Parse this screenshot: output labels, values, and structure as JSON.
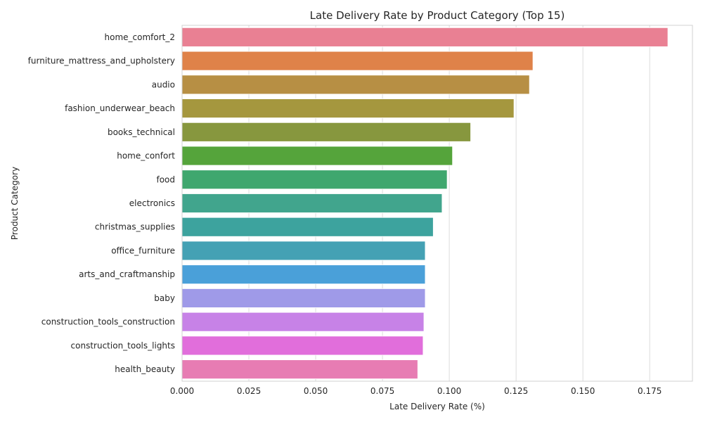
{
  "chart_data": {
    "type": "bar",
    "orientation": "horizontal",
    "title": "Late Delivery Rate by Product Category (Top 15)",
    "xlabel": "Late Delivery Rate (%)",
    "ylabel": "Product Category",
    "xlim": [
      0,
      0.191
    ],
    "xticks": [
      "0.000",
      "0.025",
      "0.050",
      "0.075",
      "0.100",
      "0.125",
      "0.150",
      "0.175"
    ],
    "grid": "vertical",
    "categories": [
      "home_comfort_2",
      "furniture_mattress_and_upholstery",
      "audio",
      "fashion_underwear_beach",
      "books_technical",
      "home_confort",
      "food",
      "electronics",
      "christmas_supplies",
      "office_furniture",
      "arts_and_craftmanship",
      "baby",
      "construction_tools_construction",
      "construction_tools_lights",
      "health_beauty"
    ],
    "values": [
      0.1818,
      0.1313,
      0.13,
      0.1242,
      0.108,
      0.1012,
      0.0992,
      0.0973,
      0.094,
      0.091,
      0.091,
      0.091,
      0.0905,
      0.0902,
      0.0882
    ],
    "colors": [
      "#e98093",
      "#df8249",
      "#b78f44",
      "#a5973e",
      "#87973e",
      "#55a43b",
      "#3fa76e",
      "#41a58d",
      "#3da39e",
      "#44a1b4",
      "#4aa0d9",
      "#9f9ae8",
      "#c782e7",
      "#e16edb",
      "#e77cb3"
    ]
  }
}
